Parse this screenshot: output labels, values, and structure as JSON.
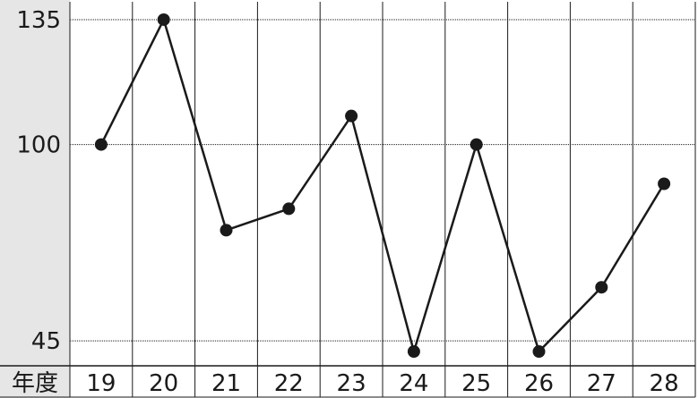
{
  "chart_data": {
    "type": "line",
    "categories": [
      "19",
      "20",
      "21",
      "22",
      "23",
      "24",
      "25",
      "26",
      "27",
      "28"
    ],
    "series": [
      {
        "values": [
          100,
          135,
          76,
          82,
          108,
          42,
          100,
          42,
          60,
          89
        ]
      }
    ],
    "category_header": "年度",
    "yticks": [
      45,
      100,
      135
    ],
    "ylim": [
      38,
      140
    ],
    "title": "",
    "xlabel": "",
    "ylabel": "",
    "grid": true,
    "colors": {
      "line": "#1a1a1a",
      "marker": "#1a1a1a",
      "axis_band": "#e6e6e6",
      "grid": "#1a1a1a"
    }
  }
}
